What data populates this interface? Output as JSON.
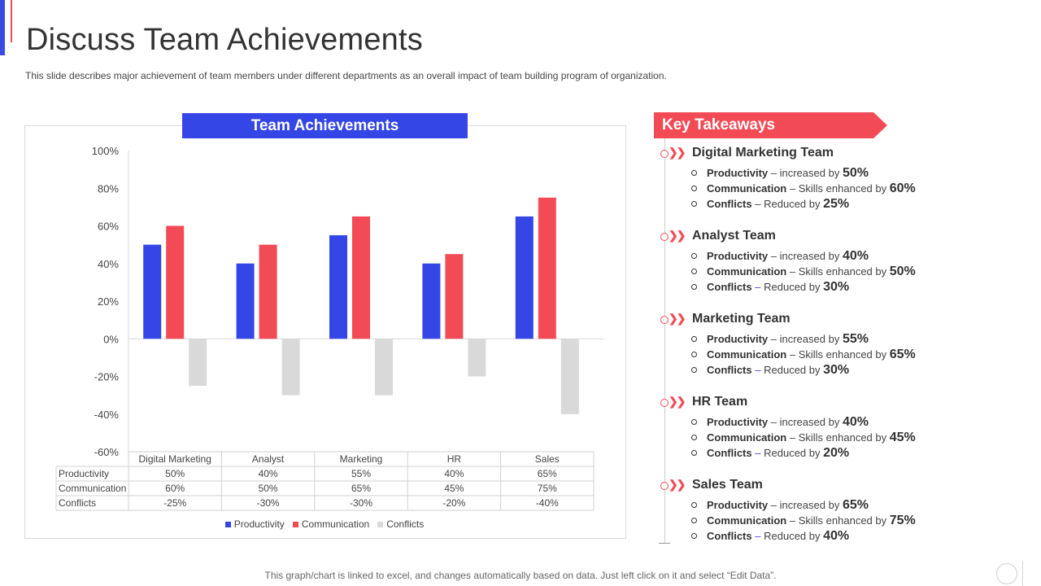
{
  "page": {
    "title": "Discuss Team Achievements",
    "subtitle": "This slide describes major achievement of team members under different departments as an overall impact of team building program of organization.",
    "footer": "This graph/chart is linked to excel,  and changes automatically based on data. Just left click on it and select “Edit Data”."
  },
  "chart_header": "Team Achievements",
  "chart_data": {
    "type": "bar",
    "categories": [
      "Digital Marketing",
      "Analyst",
      "Marketing",
      "HR",
      "Sales"
    ],
    "series": [
      {
        "name": "Productivity",
        "values": [
          50,
          40,
          55,
          40,
          65
        ],
        "labels": [
          "50%",
          "40%",
          "55%",
          "40%",
          "65%"
        ],
        "color": "#3446e6"
      },
      {
        "name": "Communication",
        "values": [
          60,
          50,
          65,
          45,
          75
        ],
        "labels": [
          "60%",
          "50%",
          "65%",
          "45%",
          "75%"
        ],
        "color": "#f24b55"
      },
      {
        "name": "Conflicts",
        "values": [
          -25,
          -30,
          -30,
          -20,
          -40
        ],
        "labels": [
          "-25%",
          "-30%",
          "-30%",
          "-20%",
          "-40%"
        ],
        "color": "#d9d9d9"
      }
    ],
    "ylim": [
      -60,
      100
    ],
    "yticks": [
      "100%",
      "80%",
      "60%",
      "40%",
      "20%",
      "0%",
      "-20%",
      "-40%",
      "-60%"
    ],
    "ytick_values": [
      100,
      80,
      60,
      40,
      20,
      0,
      -20,
      -40,
      -60
    ],
    "data_table": true,
    "legend_position": "bottom",
    "grid": false
  },
  "key_takeaways": {
    "title": "Key Takeaways",
    "header_color": "#f24b55",
    "teams": [
      {
        "name": "Digital Marketing Team",
        "items": [
          {
            "label": "Productivity",
            "dash": "–",
            "text": "increased by",
            "value": "50%"
          },
          {
            "label": "Communication",
            "dash": "–",
            "text": "Skills enhanced by",
            "value": "60%"
          },
          {
            "label": "Conflicts",
            "dash": "–",
            "text": "Reduced by",
            "value": "25%"
          }
        ]
      },
      {
        "name": "Analyst Team",
        "items": [
          {
            "label": "Productivity",
            "dash": "–",
            "text": "increased by",
            "value": "40%"
          },
          {
            "label": "Communication",
            "dash": "–",
            "text": "Skills enhanced by",
            "value": "50%"
          },
          {
            "label": "Conflicts",
            "dash": "–",
            "text": "Reduced by",
            "value": "30%"
          }
        ]
      },
      {
        "name": "Marketing Team",
        "items": [
          {
            "label": "Productivity",
            "dash": "–",
            "text": "increased by",
            "value": "55%"
          },
          {
            "label": "Communication",
            "dash": "–",
            "text": "Skills enhanced by",
            "value": "65%"
          },
          {
            "label": "Conflicts",
            "dash": "–",
            "text": "Reduced by",
            "value": "30%"
          }
        ]
      },
      {
        "name": "HR Team",
        "items": [
          {
            "label": "Productivity",
            "dash": "–",
            "text": "increased by",
            "value": "40%"
          },
          {
            "label": "Communication",
            "dash": "–",
            "text": "Skills enhanced by",
            "value": "45%"
          },
          {
            "label": "Conflicts",
            "dash": "–",
            "text": "Reduced by",
            "value": "20%"
          }
        ]
      },
      {
        "name": "Sales Team",
        "items": [
          {
            "label": "Productivity",
            "dash": "–",
            "text": "increased by",
            "value": "65%"
          },
          {
            "label": "Communication",
            "dash": "–",
            "text": "Skills enhanced by",
            "value": "75%"
          },
          {
            "label": "Conflicts",
            "dash": "–",
            "text": "Reduced by",
            "value": "40%"
          }
        ]
      }
    ]
  }
}
